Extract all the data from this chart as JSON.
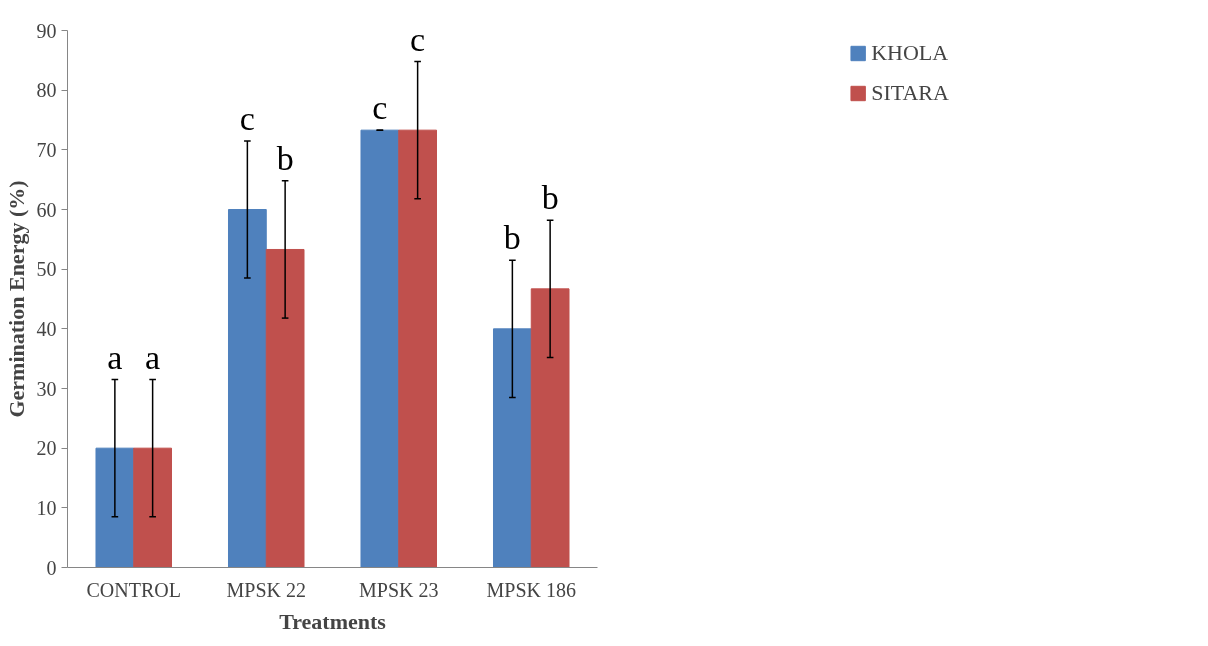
{
  "chart_data": {
    "type": "bar",
    "xlabel": "Treatments",
    "ylabel": "Germination Energy (%)",
    "categories": [
      "CONTROL",
      "MPSK 22",
      "MPSK 23",
      "MPSK 186"
    ],
    "series": [
      {
        "name": "KHOLA",
        "color": "#4f81bd",
        "values": [
          20,
          60,
          73.3,
          40
        ],
        "errors": [
          11.5,
          11.5,
          0,
          11.5
        ],
        "value_labels": [
          "a",
          "c",
          "c",
          "b"
        ]
      },
      {
        "name": "SITARA",
        "color": "#c0504d",
        "values": [
          20,
          53.3,
          73.3,
          46.7
        ],
        "errors": [
          11.5,
          11.5,
          11.5,
          11.5
        ],
        "value_labels": [
          "a",
          "b",
          "c",
          "b"
        ]
      }
    ],
    "ylim": [
      0,
      90
    ],
    "yticks": [
      0,
      10,
      20,
      30,
      40,
      50,
      60,
      70,
      80,
      90
    ],
    "grid": false,
    "legend": "top right"
  }
}
